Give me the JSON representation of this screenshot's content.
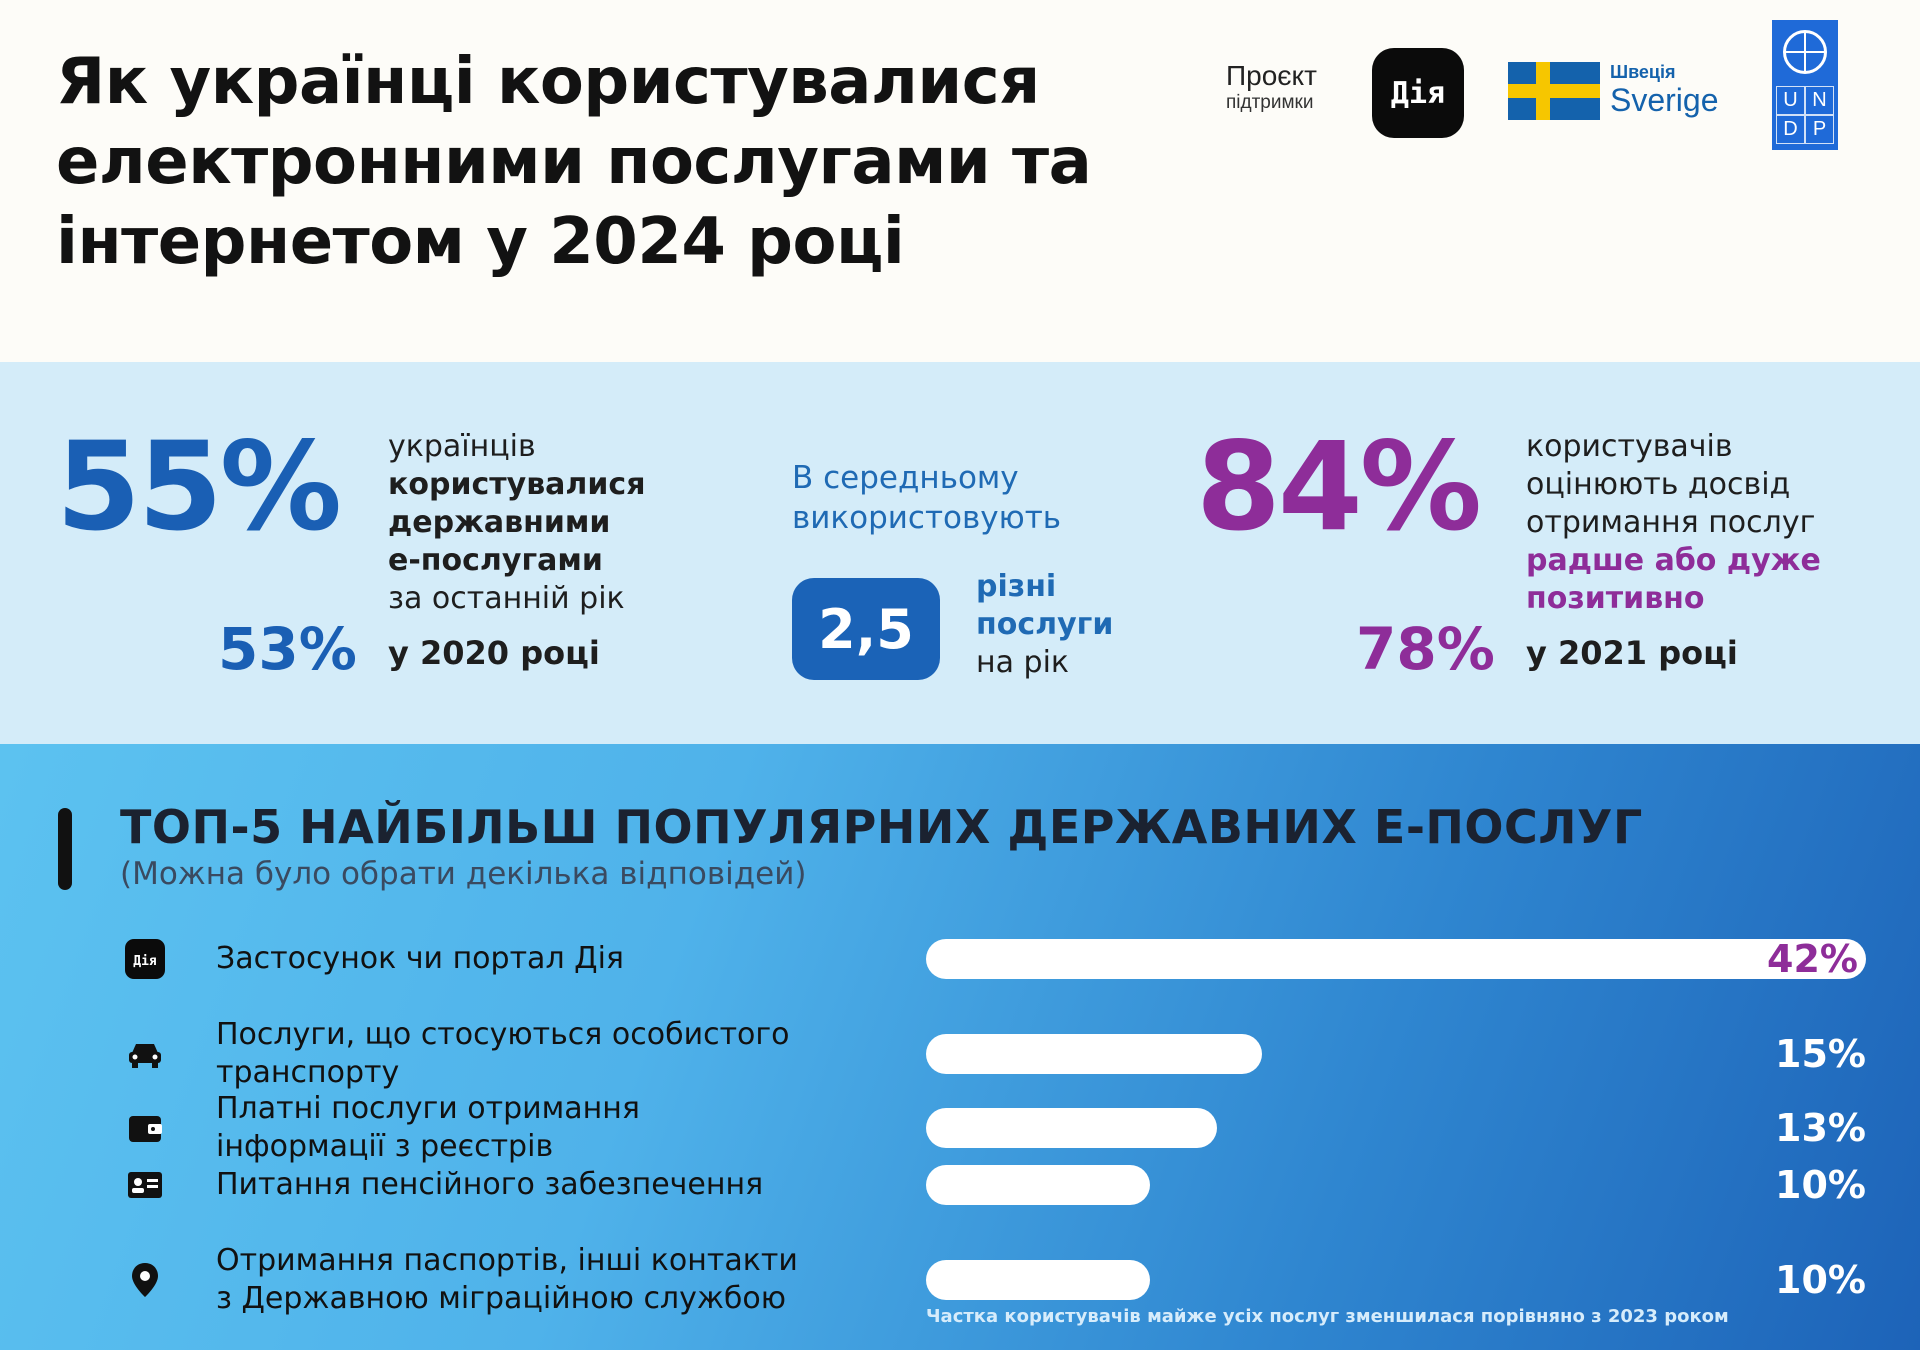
{
  "header": {
    "title_lines": [
      "Як українці користувалися",
      "електронними послугами та",
      "інтернетом у 2024 році"
    ],
    "support_line1": "Проєкт",
    "support_line2": "підтримки",
    "diia_logo": "Дія",
    "sweden_line1": "Швеція",
    "sweden_line2": "Sverige",
    "undp_letters": [
      "U",
      "N",
      "D",
      "P"
    ]
  },
  "stats": {
    "left": {
      "big": "55%",
      "line1": "українців",
      "line2": "користувалися",
      "line3": "державними",
      "line4": "е-послугами",
      "line5": "за останній рік",
      "small": "53%",
      "small_label": "у 2020 році"
    },
    "middle": {
      "lead1": "В середньому",
      "lead2": "використовують",
      "badge": "2,5",
      "desc1": "різні",
      "desc2": "послуги",
      "desc3": "на рік"
    },
    "right": {
      "big": "84%",
      "line1": "користувачів",
      "line2": "оцінюють досвід",
      "line3": "отримання послуг",
      "line4": "радше або дуже",
      "line5": "позитивно",
      "small": "78%",
      "small_label": "у 2021 році"
    }
  },
  "colors": {
    "blue": "#1a5fb4",
    "purple": "#8e2d99",
    "band": "#d4ecf9"
  },
  "chart_data": {
    "type": "bar",
    "title": "ТОП-5 НАЙБІЛЬШ ПОПУЛЯРНИХ ДЕРЖАВНИХ Е-ПОСЛУГ",
    "subtitle": "(Можна було обрати декілька відповідей)",
    "categories": [
      "Застосунок чи портал Дія",
      "Послуги, що стосуються особистого транспорту",
      "Платні послуги отримання інформації з реєстрів",
      "Питання пенсійного забезпечення",
      "Отримання паспортів, інші контакти з Державною міграційною службою"
    ],
    "label_lines": [
      [
        "Застосунок чи портал Дія"
      ],
      [
        "Послуги, що стосуються особистого",
        "транспорту"
      ],
      [
        "Платні послуги отримання",
        "інформації з реєстрів"
      ],
      [
        "Питання пенсійного забезпечення"
      ],
      [
        "Отримання паспортів, інші контакти",
        "з Державною міграційною службою"
      ]
    ],
    "icons": [
      "diia-icon",
      "car-icon",
      "wallet-icon",
      "id-card-icon",
      "location-pin-icon"
    ],
    "values": [
      42,
      15,
      13,
      10,
      10
    ],
    "value_labels": [
      "42%",
      "15%",
      "13%",
      "10%",
      "10%"
    ],
    "xlim": [
      0,
      42
    ],
    "note": "Частка користувачів майже усіх послуг зменшилася порівняно з 2023 роком"
  }
}
